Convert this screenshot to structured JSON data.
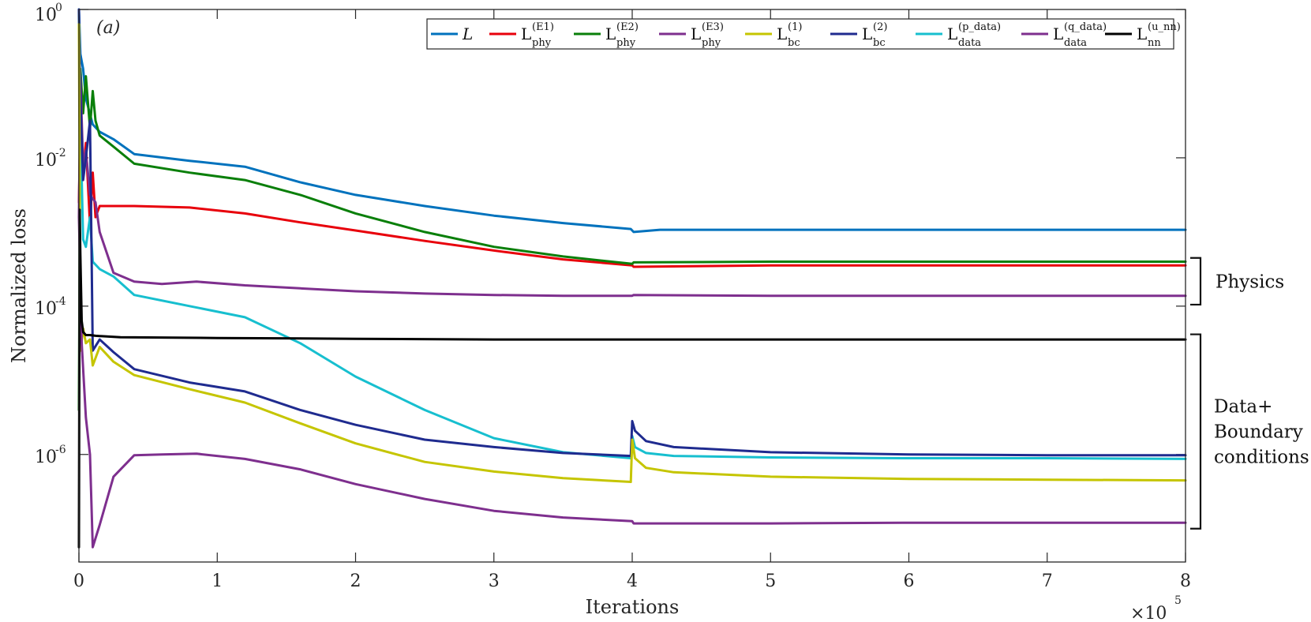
{
  "chart_data": {
    "type": "line",
    "panel_label": "(a)",
    "xlabel": "Iterations",
    "ylabel": "Normalized loss",
    "x_multiplier": {
      "base": "×10",
      "exponent": "5"
    },
    "xlim": [
      0,
      8
    ],
    "ylim_log10": [
      -7.45,
      0
    ],
    "xticks": [
      0,
      1,
      2,
      3,
      4,
      5,
      6,
      7,
      8
    ],
    "xtick_labels": [
      "0",
      "1",
      "2",
      "3",
      "4",
      "5",
      "6",
      "7",
      "8"
    ],
    "yticks_log10": [
      0,
      -2,
      -4,
      -6
    ],
    "ytick_labels": [
      {
        "base": "10",
        "exp": "0"
      },
      {
        "base": "10",
        "exp": "-2"
      },
      {
        "base": "10",
        "exp": "-4"
      },
      {
        "base": "10",
        "exp": "-6"
      }
    ],
    "legend_position": "top-right",
    "series": [
      {
        "name": "L",
        "sub": "",
        "sup": "",
        "color": "#0072bd",
        "x": [
          0,
          0.01,
          0.03,
          0.05,
          0.1,
          0.15,
          0.25,
          0.4,
          0.8,
          1.2,
          1.6,
          2,
          2.5,
          3,
          3.5,
          3.99,
          4.01,
          4.2,
          5,
          6,
          7,
          8
        ],
        "log10": [
          0,
          -0.6,
          -0.8,
          -1.2,
          -1.55,
          -1.65,
          -1.75,
          -1.95,
          -2.04,
          -2.12,
          -2.33,
          -2.5,
          -2.65,
          -2.78,
          -2.88,
          -2.96,
          -3.0,
          -2.97,
          -2.97,
          -2.97,
          -2.97,
          -2.97
        ]
      },
      {
        "name": "L",
        "sub": "phy",
        "sup": "(E1)",
        "color": "#e8000b",
        "x": [
          0,
          0.01,
          0.03,
          0.05,
          0.08,
          0.1,
          0.12,
          0.15,
          0.25,
          0.4,
          0.8,
          1.2,
          1.6,
          2,
          2.5,
          3,
          3.5,
          4,
          4.01,
          5,
          6,
          7,
          8
        ],
        "log10": [
          -2.6,
          -1.5,
          -2.2,
          -1.8,
          -2.9,
          -2.2,
          -2.8,
          -2.65,
          -2.65,
          -2.65,
          -2.67,
          -2.75,
          -2.87,
          -2.98,
          -3.12,
          -3.25,
          -3.37,
          -3.45,
          -3.47,
          -3.45,
          -3.45,
          -3.45,
          -3.45
        ]
      },
      {
        "name": "L",
        "sub": "phy",
        "sup": "(E2)",
        "color": "#0a7f0a",
        "x": [
          0,
          0.01,
          0.03,
          0.05,
          0.08,
          0.1,
          0.12,
          0.15,
          0.25,
          0.4,
          0.8,
          1.2,
          1.6,
          2,
          2.5,
          3,
          3.5,
          4,
          4.01,
          5,
          6,
          7,
          8
        ],
        "log10": [
          -5.4,
          -0.8,
          -1.4,
          -0.9,
          -1.6,
          -1.1,
          -1.5,
          -1.7,
          -1.85,
          -2.08,
          -2.2,
          -2.3,
          -2.5,
          -2.75,
          -3.0,
          -3.2,
          -3.33,
          -3.43,
          -3.41,
          -3.4,
          -3.4,
          -3.4,
          -3.4
        ]
      },
      {
        "name": "L",
        "sub": "phy",
        "sup": "(E3)",
        "color": "#7e2f8e",
        "x": [
          0,
          0.01,
          0.03,
          0.05,
          0.08,
          0.12,
          0.15,
          0.25,
          0.4,
          0.6,
          0.85,
          1.2,
          1.6,
          2,
          2.5,
          3,
          3.5,
          4,
          4.01,
          5,
          6,
          7,
          8
        ],
        "log10": [
          -2.8,
          -0.9,
          -2.1,
          -1.9,
          -2.5,
          -2.6,
          -3.0,
          -3.55,
          -3.67,
          -3.7,
          -3.67,
          -3.72,
          -3.76,
          -3.8,
          -3.83,
          -3.85,
          -3.86,
          -3.86,
          -3.85,
          -3.86,
          -3.86,
          -3.86,
          -3.86
        ]
      },
      {
        "name": "L",
        "sub": "bc",
        "sup": "(1)",
        "color": "#c5c500",
        "x": [
          0,
          0.01,
          0.03,
          0.05,
          0.08,
          0.1,
          0.15,
          0.25,
          0.4,
          0.8,
          1.2,
          1.6,
          2,
          2.5,
          3,
          3.5,
          3.99,
          4.0,
          4.02,
          4.1,
          4.3,
          5,
          6,
          7,
          8
        ],
        "log10": [
          -0.2,
          -4.6,
          -4.3,
          -4.5,
          -4.45,
          -4.8,
          -4.55,
          -4.75,
          -4.93,
          -5.12,
          -5.3,
          -5.58,
          -5.85,
          -6.1,
          -6.23,
          -6.32,
          -6.37,
          -5.8,
          -6.05,
          -6.18,
          -6.24,
          -6.3,
          -6.33,
          -6.34,
          -6.35
        ]
      },
      {
        "name": "L",
        "sub": "bc",
        "sup": "(2)",
        "color": "#1f2b8f",
        "x": [
          0,
          0.01,
          0.03,
          0.05,
          0.08,
          0.1,
          0.15,
          0.25,
          0.4,
          0.8,
          1.2,
          1.6,
          2,
          2.5,
          3,
          3.5,
          3.99,
          4.0,
          4.02,
          4.1,
          4.3,
          5,
          6,
          7,
          8
        ],
        "log10": [
          0,
          -1.2,
          -2.3,
          -2.0,
          -1.5,
          -4.6,
          -4.45,
          -4.62,
          -4.85,
          -5.03,
          -5.15,
          -5.4,
          -5.6,
          -5.8,
          -5.9,
          -5.98,
          -6.02,
          -5.55,
          -5.68,
          -5.82,
          -5.9,
          -5.97,
          -6.0,
          -6.01,
          -6.01
        ]
      },
      {
        "name": "L",
        "sub": "data",
        "sup": "(p_data)",
        "color": "#17bfcf",
        "x": [
          0,
          0.01,
          0.03,
          0.05,
          0.08,
          0.1,
          0.15,
          0.25,
          0.4,
          0.8,
          1.2,
          1.6,
          2,
          2.5,
          3,
          3.5,
          3.99,
          4.0,
          4.02,
          4.1,
          4.3,
          5,
          6,
          7,
          8
        ],
        "log10": [
          0,
          -1.5,
          -3.1,
          -3.2,
          -2.8,
          -3.4,
          -3.5,
          -3.6,
          -3.85,
          -4.0,
          -4.15,
          -4.5,
          -4.95,
          -5.4,
          -5.78,
          -5.97,
          -6.05,
          -5.75,
          -5.9,
          -5.98,
          -6.02,
          -6.04,
          -6.05,
          -6.05,
          -6.06
        ]
      },
      {
        "name": "L",
        "sub": "data",
        "sup": "(q_data)",
        "color": "#7e2f8e",
        "x": [
          0,
          0.02,
          0.05,
          0.08,
          0.1,
          0.15,
          0.25,
          0.4,
          0.6,
          0.85,
          1.2,
          1.6,
          2,
          2.5,
          3,
          3.5,
          4,
          4.01,
          5,
          6,
          7,
          8
        ],
        "log10": [
          -2.8,
          -4.5,
          -5.5,
          -6.0,
          -7.25,
          -6.95,
          -6.3,
          -6.01,
          -6.0,
          -5.99,
          -6.06,
          -6.2,
          -6.4,
          -6.6,
          -6.76,
          -6.85,
          -6.9,
          -6.93,
          -6.93,
          -6.92,
          -6.92,
          -6.92
        ]
      },
      {
        "name": "L",
        "sub": "nn",
        "sup": "(u_nn)",
        "color": "#000000",
        "x": [
          0,
          0.005,
          0.01,
          0.02,
          0.03,
          0.05,
          0.08,
          0.12,
          0.3,
          1,
          2,
          3,
          4,
          5,
          6,
          7,
          8
        ],
        "log10": [
          -7.25,
          -2.7,
          -3.3,
          -4.2,
          -4.35,
          -4.39,
          -4.39,
          -4.4,
          -4.42,
          -4.43,
          -4.44,
          -4.45,
          -4.45,
          -4.45,
          -4.45,
          -4.45,
          -4.45
        ]
      }
    ],
    "annotations": [
      {
        "text": "Physics",
        "log10_range": [
          -3.35,
          -3.98
        ]
      },
      {
        "text": [
          "Data+",
          "Boundary",
          "conditions"
        ],
        "log10_range": [
          -4.38,
          -7.0
        ]
      }
    ]
  }
}
